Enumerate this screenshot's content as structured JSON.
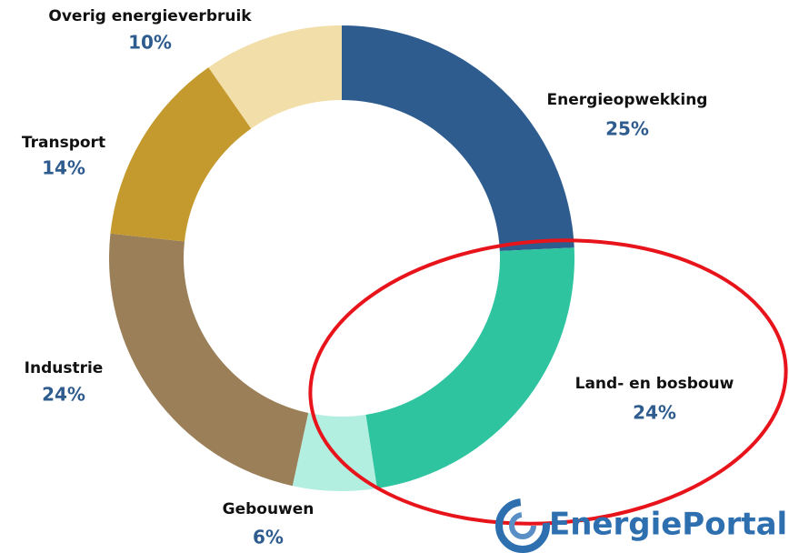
{
  "chart_data": {
    "type": "donut",
    "categories": [
      "Energieopwekking",
      "Land- en bosbouw",
      "Gebouwen",
      "Industrie",
      "Transport",
      "Overig energieverbruik"
    ],
    "values": [
      25,
      24,
      6,
      24,
      14,
      10
    ],
    "value_labels": [
      "25%",
      "24%",
      "6%",
      "24%",
      "14%",
      "10%"
    ],
    "colors": [
      "#2e5c8e",
      "#2ec4a0",
      "#b2efe0",
      "#9a7f58",
      "#c49a2e",
      "#f2dea8"
    ]
  },
  "logo": "EnergiePortal"
}
